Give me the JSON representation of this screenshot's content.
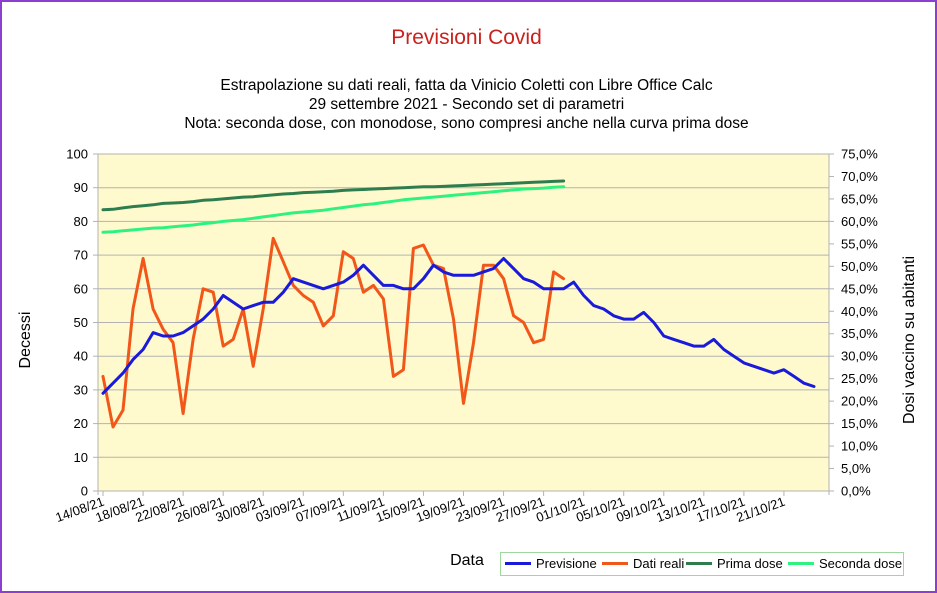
{
  "chart_data": {
    "type": "line",
    "title": "Previsioni Covid",
    "subtitle": [
      "Estrapolazione su dati reali, fatta da Vinicio Coletti con Libre Office Calc",
      "29 settembre 2021 - Secondo set di parametri",
      "Nota: seconda dose, con monodose, sono compresi anche nella curva prima dose"
    ],
    "xlabel": "Data",
    "ylabel": "Decessi",
    "y2label": "Dosi vaccino su abitanti",
    "ylim": [
      0,
      100
    ],
    "y2lim": [
      0,
      75
    ],
    "yticks": [
      "0",
      "10",
      "20",
      "30",
      "40",
      "50",
      "60",
      "70",
      "80",
      "90",
      "100"
    ],
    "y2ticks": [
      "0,0%",
      "5,0%",
      "10,0%",
      "15,0%",
      "20,0%",
      "25,0%",
      "30,0%",
      "35,0%",
      "40,0%",
      "45,0%",
      "50,0%",
      "55,0%",
      "60,0%",
      "65,0%",
      "70,0%",
      "75,0%"
    ],
    "xticks": [
      "14/08/21",
      "18/08/21",
      "22/08/21",
      "26/08/21",
      "30/08/21",
      "03/09/21",
      "07/09/21",
      "11/09/21",
      "15/09/21",
      "19/09/21",
      "23/09/21",
      "27/09/21",
      "01/10/21",
      "05/10/21",
      "09/10/21",
      "13/10/21",
      "17/10/21",
      "21/10/21"
    ],
    "grid": true,
    "legend_position": "bottom-right",
    "series": [
      {
        "name": "Previsione",
        "color": "#1a1adb",
        "axis": "left",
        "values": [
          29,
          32,
          35,
          39,
          42,
          47,
          46,
          46,
          47,
          49,
          51,
          54,
          58,
          56,
          54,
          55,
          56,
          56,
          59,
          63,
          62,
          61,
          60,
          61,
          62,
          64,
          67,
          64,
          61,
          61,
          60,
          60,
          63,
          67,
          65,
          64,
          64,
          64,
          65,
          66,
          69,
          66,
          63,
          62,
          60,
          60,
          60,
          62,
          58,
          55,
          54,
          52,
          51,
          51,
          53,
          50,
          46,
          45,
          44,
          43,
          43,
          45,
          42,
          40,
          38,
          37,
          36,
          35,
          36,
          34,
          32,
          31
        ]
      },
      {
        "name": "Dati reali",
        "color": "#f2571a",
        "axis": "left",
        "values": [
          34,
          19,
          24,
          54,
          69,
          54,
          48,
          44,
          23,
          45,
          60,
          59,
          43,
          45,
          54,
          37,
          54,
          75,
          68,
          61,
          58,
          56,
          49,
          52,
          71,
          69,
          59,
          61,
          57,
          34,
          36,
          72,
          73,
          67,
          66,
          51,
          26,
          44,
          67,
          67,
          63,
          52,
          50,
          44,
          45,
          65,
          63
        ]
      },
      {
        "name": "Prima dose",
        "color": "#2e7d4f",
        "axis": "right",
        "values": [
          62.6,
          62.7,
          63.0,
          63.3,
          63.5,
          63.7,
          64.0,
          64.1,
          64.2,
          64.4,
          64.7,
          64.8,
          65.0,
          65.2,
          65.4,
          65.5,
          65.7,
          65.9,
          66.1,
          66.2,
          66.4,
          66.5,
          66.6,
          66.7,
          66.9,
          67.0,
          67.1,
          67.2,
          67.3,
          67.4,
          67.5,
          67.6,
          67.7,
          67.7,
          67.8,
          67.9,
          68.0,
          68.1,
          68.2,
          68.3,
          68.4,
          68.5,
          68.6,
          68.7,
          68.8,
          68.9,
          69.0
        ]
      },
      {
        "name": "Seconda dose",
        "color": "#2ef27f",
        "axis": "right",
        "values": [
          57.6,
          57.7,
          57.9,
          58.1,
          58.3,
          58.5,
          58.6,
          58.8,
          59.0,
          59.2,
          59.5,
          59.7,
          60.0,
          60.2,
          60.4,
          60.7,
          61.0,
          61.3,
          61.6,
          61.9,
          62.1,
          62.3,
          62.5,
          62.8,
          63.1,
          63.4,
          63.7,
          63.9,
          64.2,
          64.5,
          64.8,
          65.0,
          65.2,
          65.4,
          65.6,
          65.8,
          66.0,
          66.2,
          66.4,
          66.6,
          66.8,
          67.0,
          67.2,
          67.3,
          67.4,
          67.6,
          67.7
        ]
      }
    ]
  }
}
